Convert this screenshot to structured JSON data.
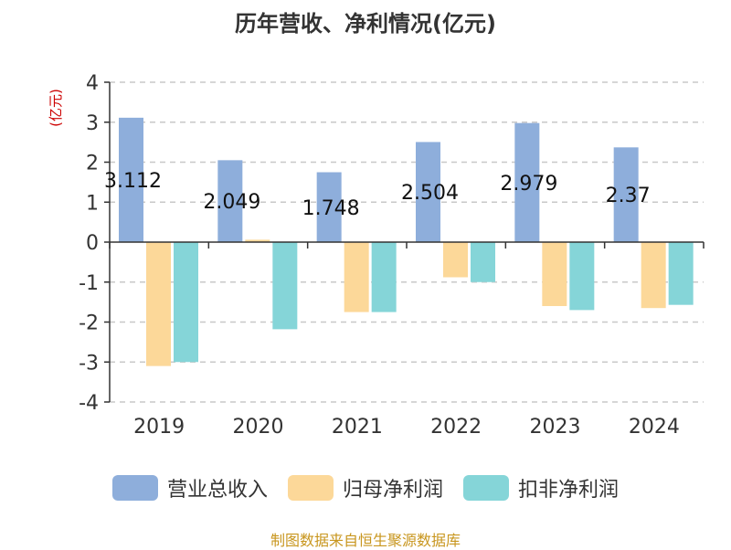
{
  "chart_data": {
    "type": "bar",
    "title": "历年营收、净利情况(亿元)",
    "unit_label": "(亿元)",
    "categories": [
      "2019",
      "2020",
      "2021",
      "2022",
      "2023",
      "2024"
    ],
    "series": [
      {
        "name": "营业总收入",
        "color": "#8eaedb",
        "values": [
          3.112,
          2.049,
          1.748,
          2.504,
          2.979,
          2.37
        ]
      },
      {
        "name": "归母净利润",
        "color": "#fcd899",
        "values": [
          -3.1,
          0.06,
          -1.75,
          -0.88,
          -1.6,
          -1.65
        ]
      },
      {
        "name": "扣非净利润",
        "color": "#85d5d8",
        "values": [
          -3.0,
          -2.18,
          -1.75,
          -1.0,
          -1.7,
          -1.57
        ]
      }
    ],
    "data_labels": [
      "3.112",
      "2.049",
      "1.748",
      "2.504",
      "2.979",
      "2.37"
    ],
    "ylim": [
      -4,
      4
    ],
    "yticks": [
      -4,
      -3,
      -2,
      -1,
      0,
      1,
      2,
      3,
      4
    ],
    "grid": true,
    "legend_position": "bottom"
  },
  "source": "制图数据来自恒生聚源数据库"
}
